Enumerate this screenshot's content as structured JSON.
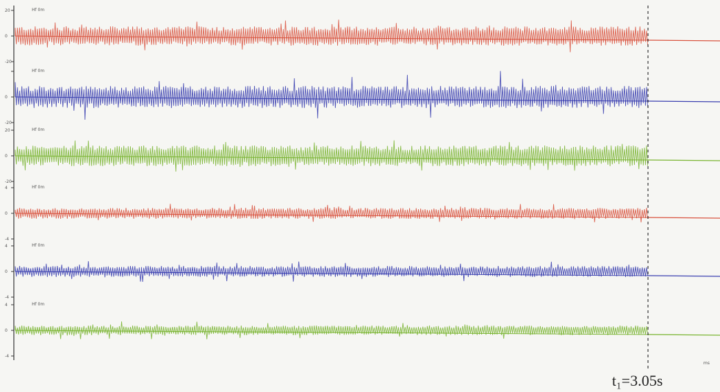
{
  "chart_data": {
    "type": "line",
    "title": "",
    "channels": [
      {
        "label": "Hf 0m",
        "color": "#d9533f",
        "ticks": [
          "20",
          "0",
          "-20"
        ],
        "amplitude": 14,
        "spike": 10
      },
      {
        "label": "Hf 0m",
        "color": "#3a3fb0",
        "ticks": [
          "",
          "0",
          "-20"
        ],
        "amplitude": 16,
        "spike": 22
      },
      {
        "label": "Hf 0m",
        "color": "#7ab532",
        "ticks": [
          "20",
          "0",
          "-20"
        ],
        "amplitude": 15,
        "spike": 8
      },
      {
        "label": "Hf 0m",
        "color": "#d9533f",
        "ticks": [
          "4",
          "0",
          "-4"
        ],
        "amplitude": 8,
        "spike": 6
      },
      {
        "label": "Hf 0m",
        "color": "#3a3fb0",
        "ticks": [
          "4",
          "0",
          "-4"
        ],
        "amplitude": 8,
        "spike": 7
      },
      {
        "label": "Hf 0m",
        "color": "#7ab532",
        "ticks": [
          "4",
          "0",
          "-4"
        ],
        "amplitude": 7,
        "spike": 6
      }
    ],
    "event_marker": {
      "label": "t₁=3.05s",
      "time_s": 3.05
    },
    "x_axis_label": "ms"
  }
}
